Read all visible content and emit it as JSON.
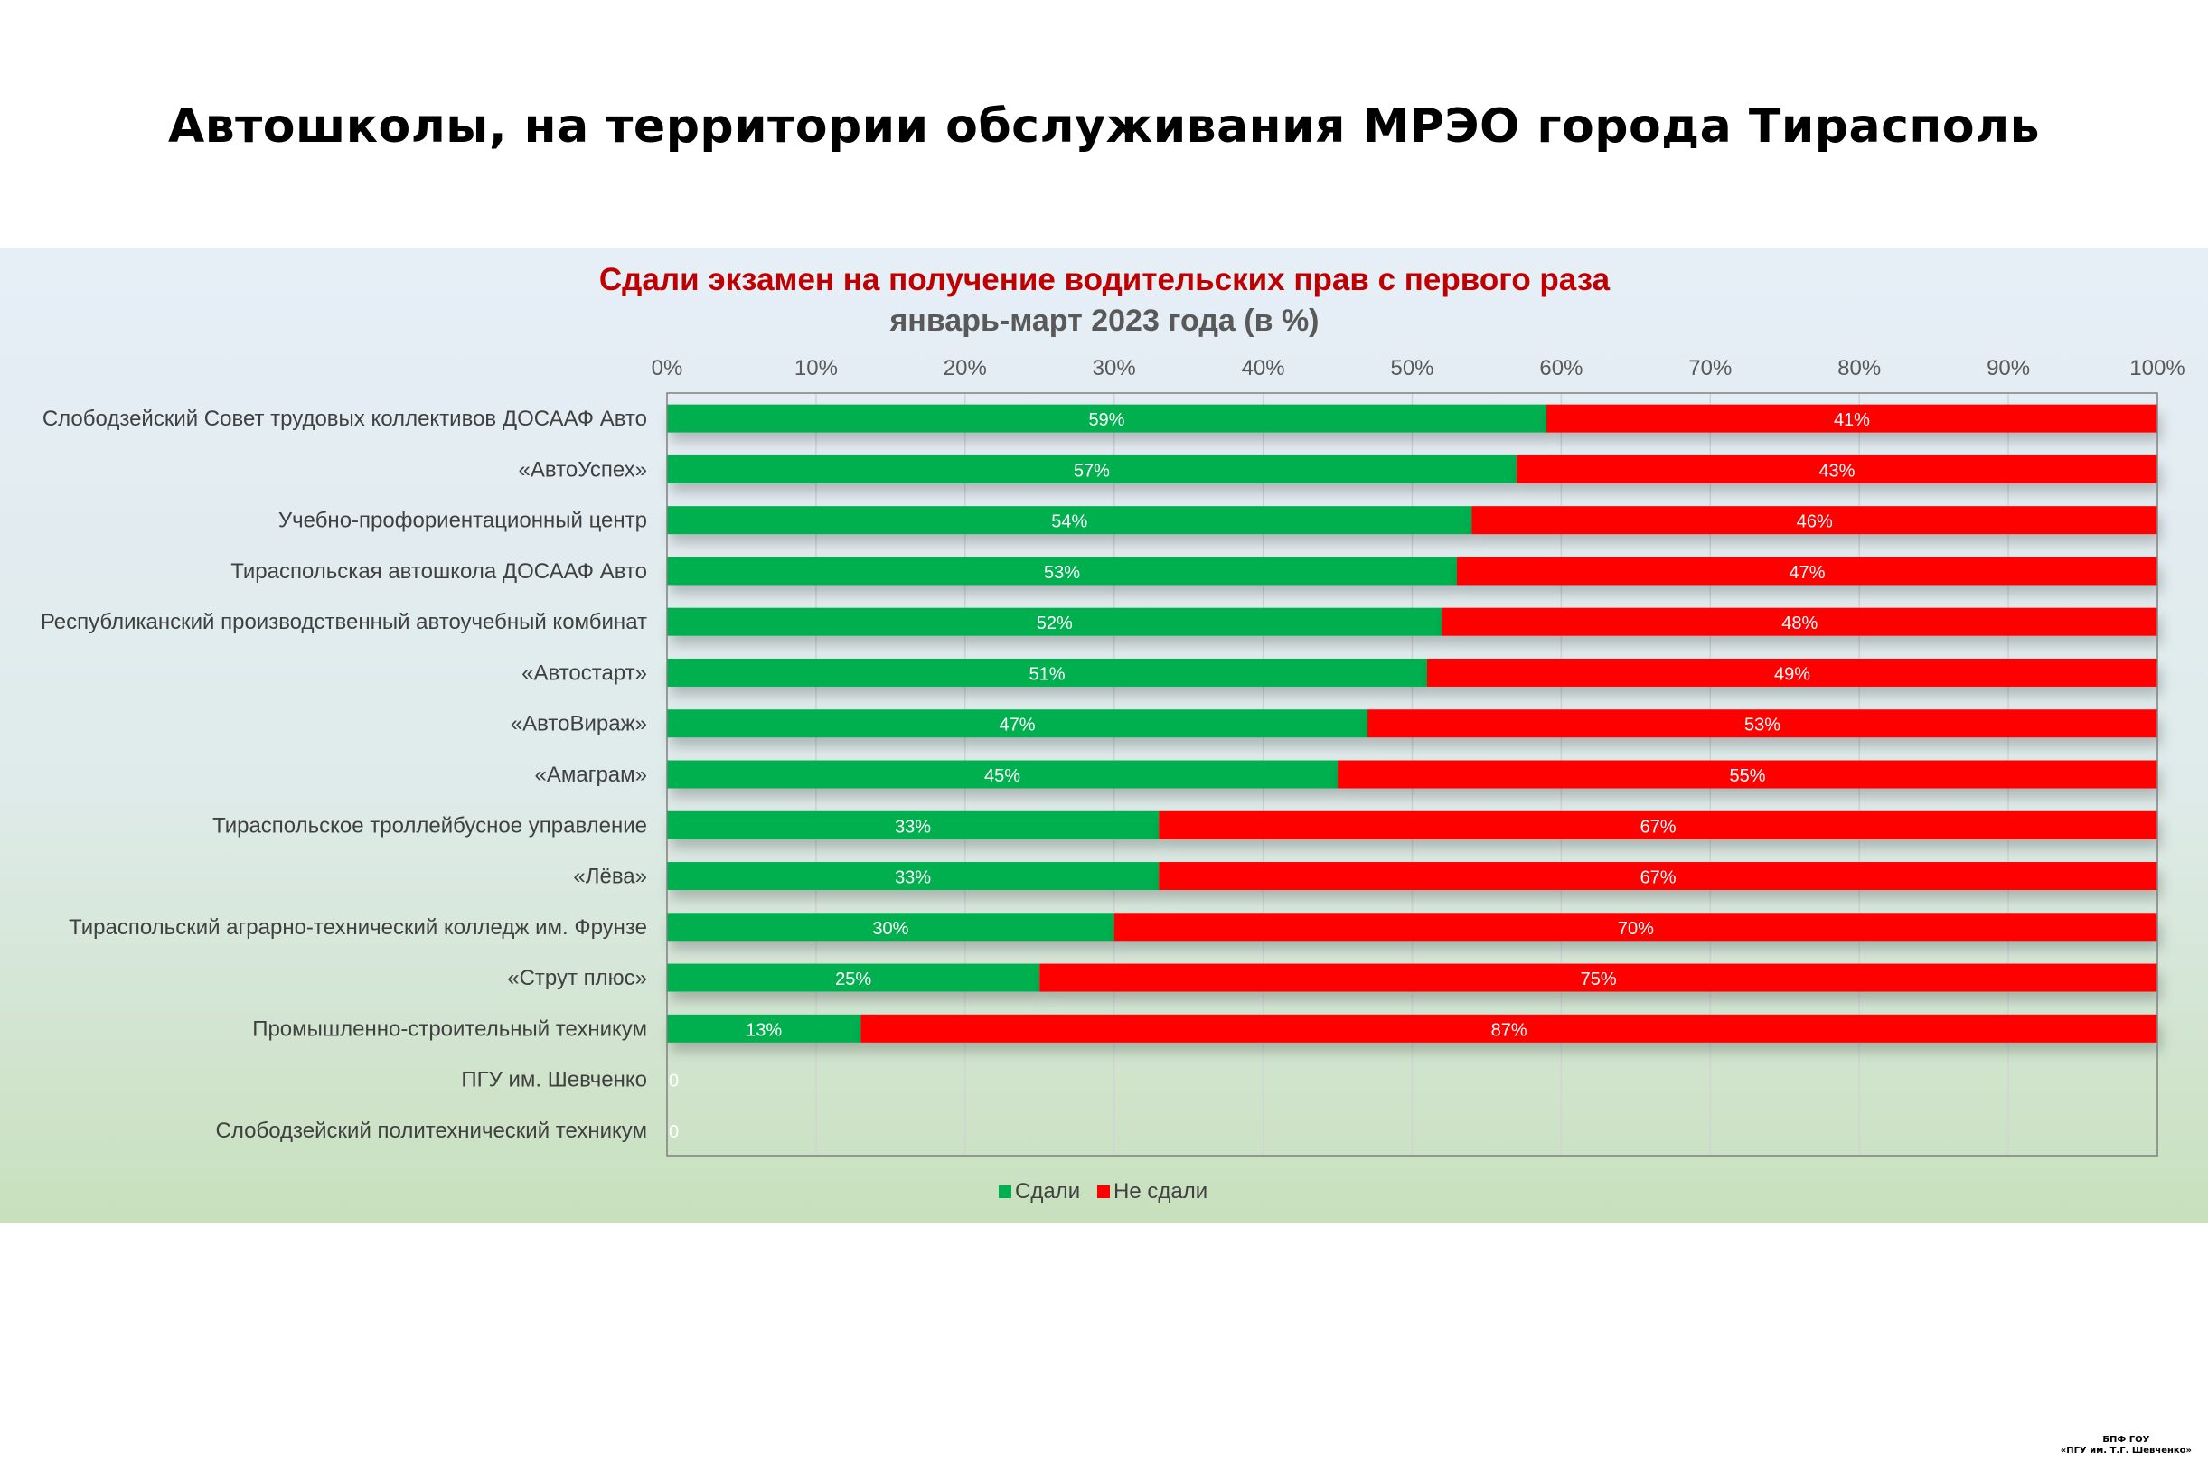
{
  "page": {
    "title": "Автошколы, на территории обслуживания МРЭО города Тирасполь",
    "footer_line1": "БПФ ГОУ",
    "footer_line2": "«ПГУ им. Т.Г. Шевченко»"
  },
  "chart_data": {
    "type": "bar",
    "orientation": "horizontal",
    "stacked": "percent",
    "title": "Сдали экзамен на получение водительских прав с первого раза",
    "subtitle": "январь-март 2023 года (в %)",
    "title_color": "#c00000",
    "subtitle_color": "#595959",
    "x_ticks": [
      "0%",
      "10%",
      "20%",
      "30%",
      "40%",
      "50%",
      "60%",
      "70%",
      "80%",
      "90%",
      "100%"
    ],
    "xlim": [
      0,
      100
    ],
    "grid": true,
    "legend": "bottom",
    "categories": [
      "Слободзейский Совет трудовых коллективов ДОСААФ Авто",
      "«АвтоУспех»",
      "Учебно-профориентационный центр",
      "Тираспольская автошкола ДОСААФ Авто",
      "Республиканский производственный автоучебный комбинат",
      "«Автостарт»",
      "«АвтоВираж»",
      "«Амаграм»",
      "Тираспольское троллейбусное управление",
      "«Лёва»",
      "Тираспольский аграрно-технический колледж им. Фрунзе",
      "«Струт плюс»",
      "Промышленно-строительный техникум",
      "ПГУ им. Шевченко",
      "Слободзейский политехнический техникум"
    ],
    "series": [
      {
        "name": "Сдали",
        "color": "#00b050",
        "values": [
          59,
          57,
          54,
          53,
          52,
          51,
          47,
          45,
          33,
          33,
          30,
          25,
          13,
          0,
          0
        ],
        "labels": [
          "59%",
          "57%",
          "54%",
          "53%",
          "52%",
          "51%",
          "47%",
          "45%",
          "33%",
          "33%",
          "30%",
          "25%",
          "13%",
          "0",
          "0"
        ]
      },
      {
        "name": "Не сдали",
        "color": "#ff0000",
        "values": [
          41,
          43,
          46,
          47,
          48,
          49,
          53,
          55,
          67,
          67,
          70,
          75,
          87,
          0,
          0
        ],
        "labels": [
          "41%",
          "43%",
          "46%",
          "47%",
          "48%",
          "49%",
          "53%",
          "55%",
          "67%",
          "67%",
          "70%",
          "75%",
          "87%",
          "",
          ""
        ]
      }
    ]
  }
}
